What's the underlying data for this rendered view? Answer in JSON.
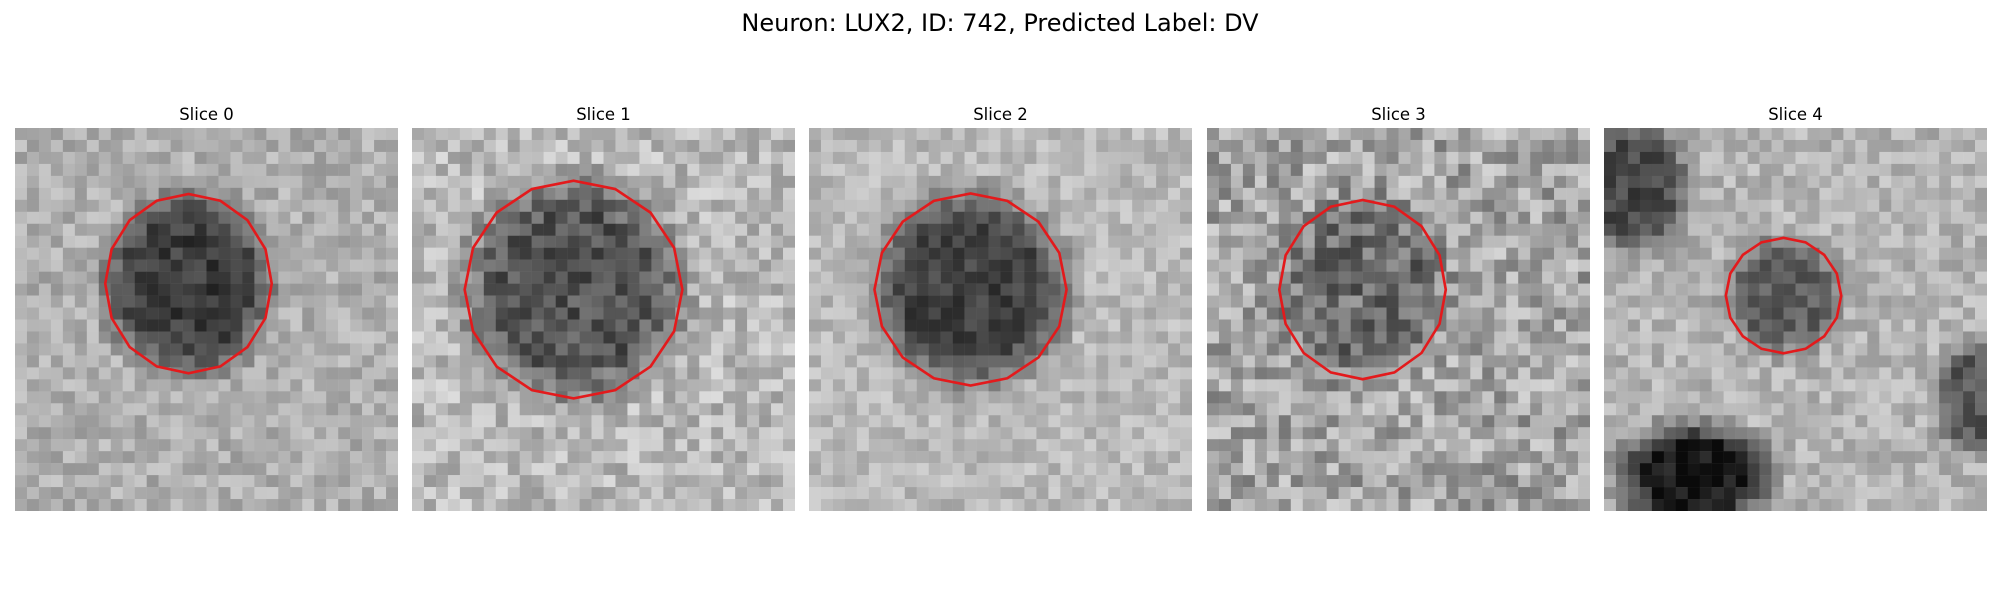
{
  "figure": {
    "title": "Neuron: LUX2, ID: 742, Predicted Label: DV"
  },
  "colors": {
    "background": "#ffffff",
    "contour": "#e31a1c",
    "colormap": "grayscale"
  },
  "panels": [
    {
      "title": "Slice 0"
    },
    {
      "title": "Slice 1"
    },
    {
      "title": "Slice 2"
    },
    {
      "title": "Slice 3"
    },
    {
      "title": "Slice 4"
    }
  ]
}
